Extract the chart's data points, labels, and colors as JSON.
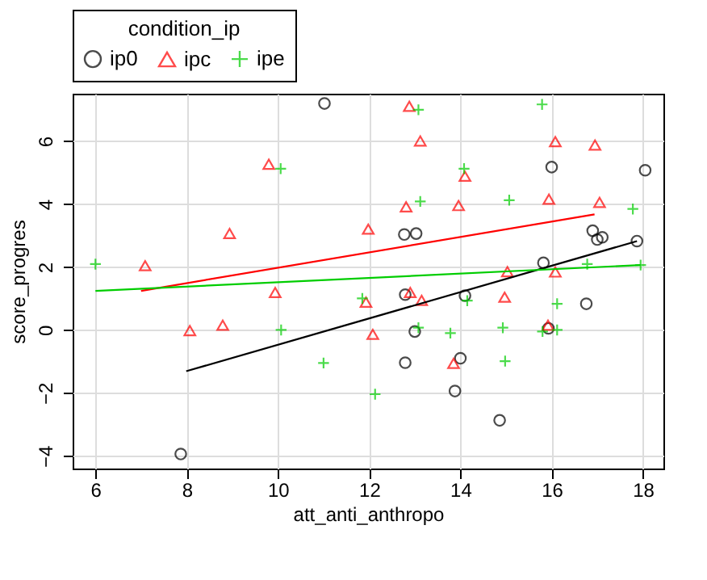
{
  "chart_data": {
    "type": "scatter",
    "xlabel": "att_anti_anthropo",
    "ylabel": "score_progres",
    "legend_title": "condition_ip",
    "legend": "top left",
    "grid": true,
    "xlim": [
      5.5,
      18.45
    ],
    "ylim": [
      -4.4,
      7.5
    ],
    "xticks": [
      6,
      8,
      10,
      12,
      14,
      16,
      18
    ],
    "yticks": [
      -4,
      -2,
      0,
      2,
      4,
      6
    ],
    "series": [
      {
        "name": "ip0",
        "color": "#000000",
        "marker": "circle",
        "x": [
          11.02,
          7.87,
          16.0,
          18.05,
          12.77,
          13.03,
          16.9,
          17.0,
          17.11,
          17.87,
          15.82,
          12.79,
          14.1,
          16.76,
          13.0,
          15.93,
          12.79,
          14.0,
          13.88,
          14.86
        ],
        "values": [
          7.19,
          -3.94,
          5.17,
          5.07,
          3.03,
          3.06,
          3.15,
          2.87,
          2.94,
          2.82,
          2.13,
          1.12,
          1.09,
          0.83,
          -0.05,
          0.05,
          -1.04,
          -0.9,
          -1.94,
          -2.87
        ]
      },
      {
        "name": "ipc",
        "color": "#ff0000",
        "marker": "triangle",
        "x": [
          9.8,
          8.94,
          7.09,
          9.94,
          8.07,
          8.79,
          12.88,
          13.12,
          16.08,
          16.95,
          14.1,
          12.81,
          13.96,
          15.94,
          17.05,
          11.98,
          15.03,
          16.08,
          11.93,
          12.9,
          13.15,
          14.97,
          12.08,
          15.92,
          13.85
        ],
        "values": [
          5.26,
          3.06,
          2.04,
          1.19,
          -0.02,
          0.15,
          7.1,
          6.0,
          5.98,
          5.87,
          4.88,
          3.91,
          3.95,
          4.15,
          4.05,
          3.2,
          1.85,
          1.84,
          0.88,
          1.19,
          0.94,
          1.04,
          -0.14,
          0.15,
          -1.06
        ]
      },
      {
        "name": "ipe",
        "color": "#00cd00",
        "marker": "cross",
        "x": [
          10.06,
          6.0,
          10.07,
          11.0,
          13.08,
          15.79,
          14.08,
          13.12,
          15.07,
          17.78,
          16.78,
          17.95,
          11.85,
          14.15,
          16.12,
          13.08,
          13.78,
          14.93,
          15.8,
          16.12,
          14.98,
          12.13
        ],
        "values": [
          5.12,
          2.09,
          0.0,
          -1.05,
          6.99,
          7.16,
          5.12,
          4.08,
          4.12,
          3.84,
          2.09,
          2.06,
          1.0,
          0.93,
          0.83,
          0.07,
          -0.1,
          0.07,
          -0.05,
          0.0,
          -0.99,
          -2.04
        ]
      },
      {
        "type": "line",
        "color": "#000000",
        "x": [
          7.99,
          17.87
        ],
        "values": [
          -1.31,
          2.82
        ]
      },
      {
        "type": "line",
        "color": "#ff0000",
        "x": [
          7.0,
          16.94
        ],
        "values": [
          1.24,
          3.67
        ]
      },
      {
        "type": "line",
        "color": "#00cd00",
        "x": [
          6.0,
          17.95
        ],
        "values": [
          1.24,
          2.06
        ]
      }
    ]
  }
}
